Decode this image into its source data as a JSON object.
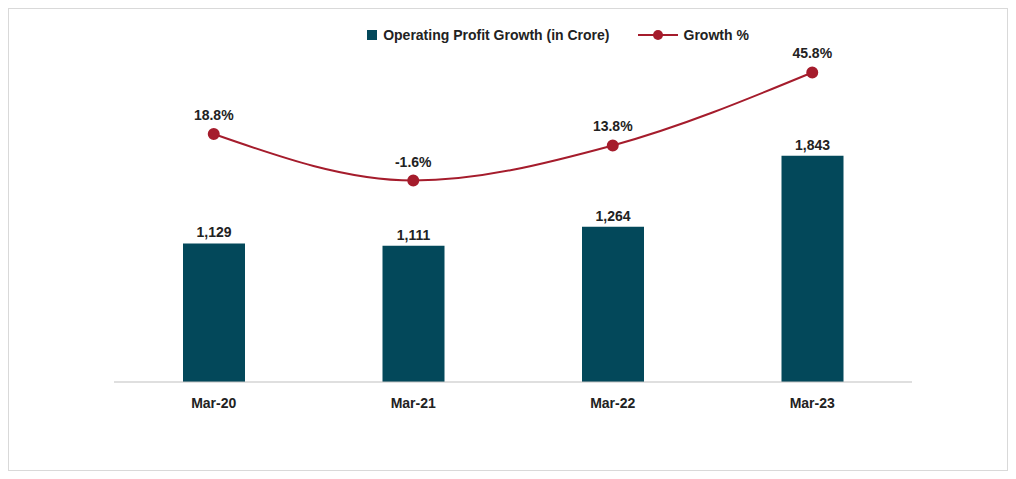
{
  "chart_data": {
    "type": "bar",
    "categories": [
      "Mar-20",
      "Mar-21",
      "Mar-22",
      "Mar-23"
    ],
    "series": [
      {
        "name": "Operating Profit Growth (in Crore)",
        "type": "bar",
        "color": "#03485a",
        "values": [
          1129,
          1111,
          1264,
          1843
        ],
        "value_labels": [
          "1,129",
          "1,111",
          "1,264",
          "1,843"
        ]
      },
      {
        "name": "Growth %",
        "type": "line",
        "axis": "y2",
        "color": "#a51c2c",
        "marker": "circle",
        "line_style": "solid",
        "values": [
          18.8,
          -1.6,
          13.8,
          45.8
        ],
        "value_labels": [
          "18.8%",
          "-1.6%",
          "13.8%",
          "45.8%"
        ]
      }
    ],
    "ylim": [
      0,
      2860
    ],
    "y2lim": [
      -90,
      64
    ],
    "data_labels": true,
    "tick_labels": "x",
    "legend": "top",
    "grid": false
  }
}
